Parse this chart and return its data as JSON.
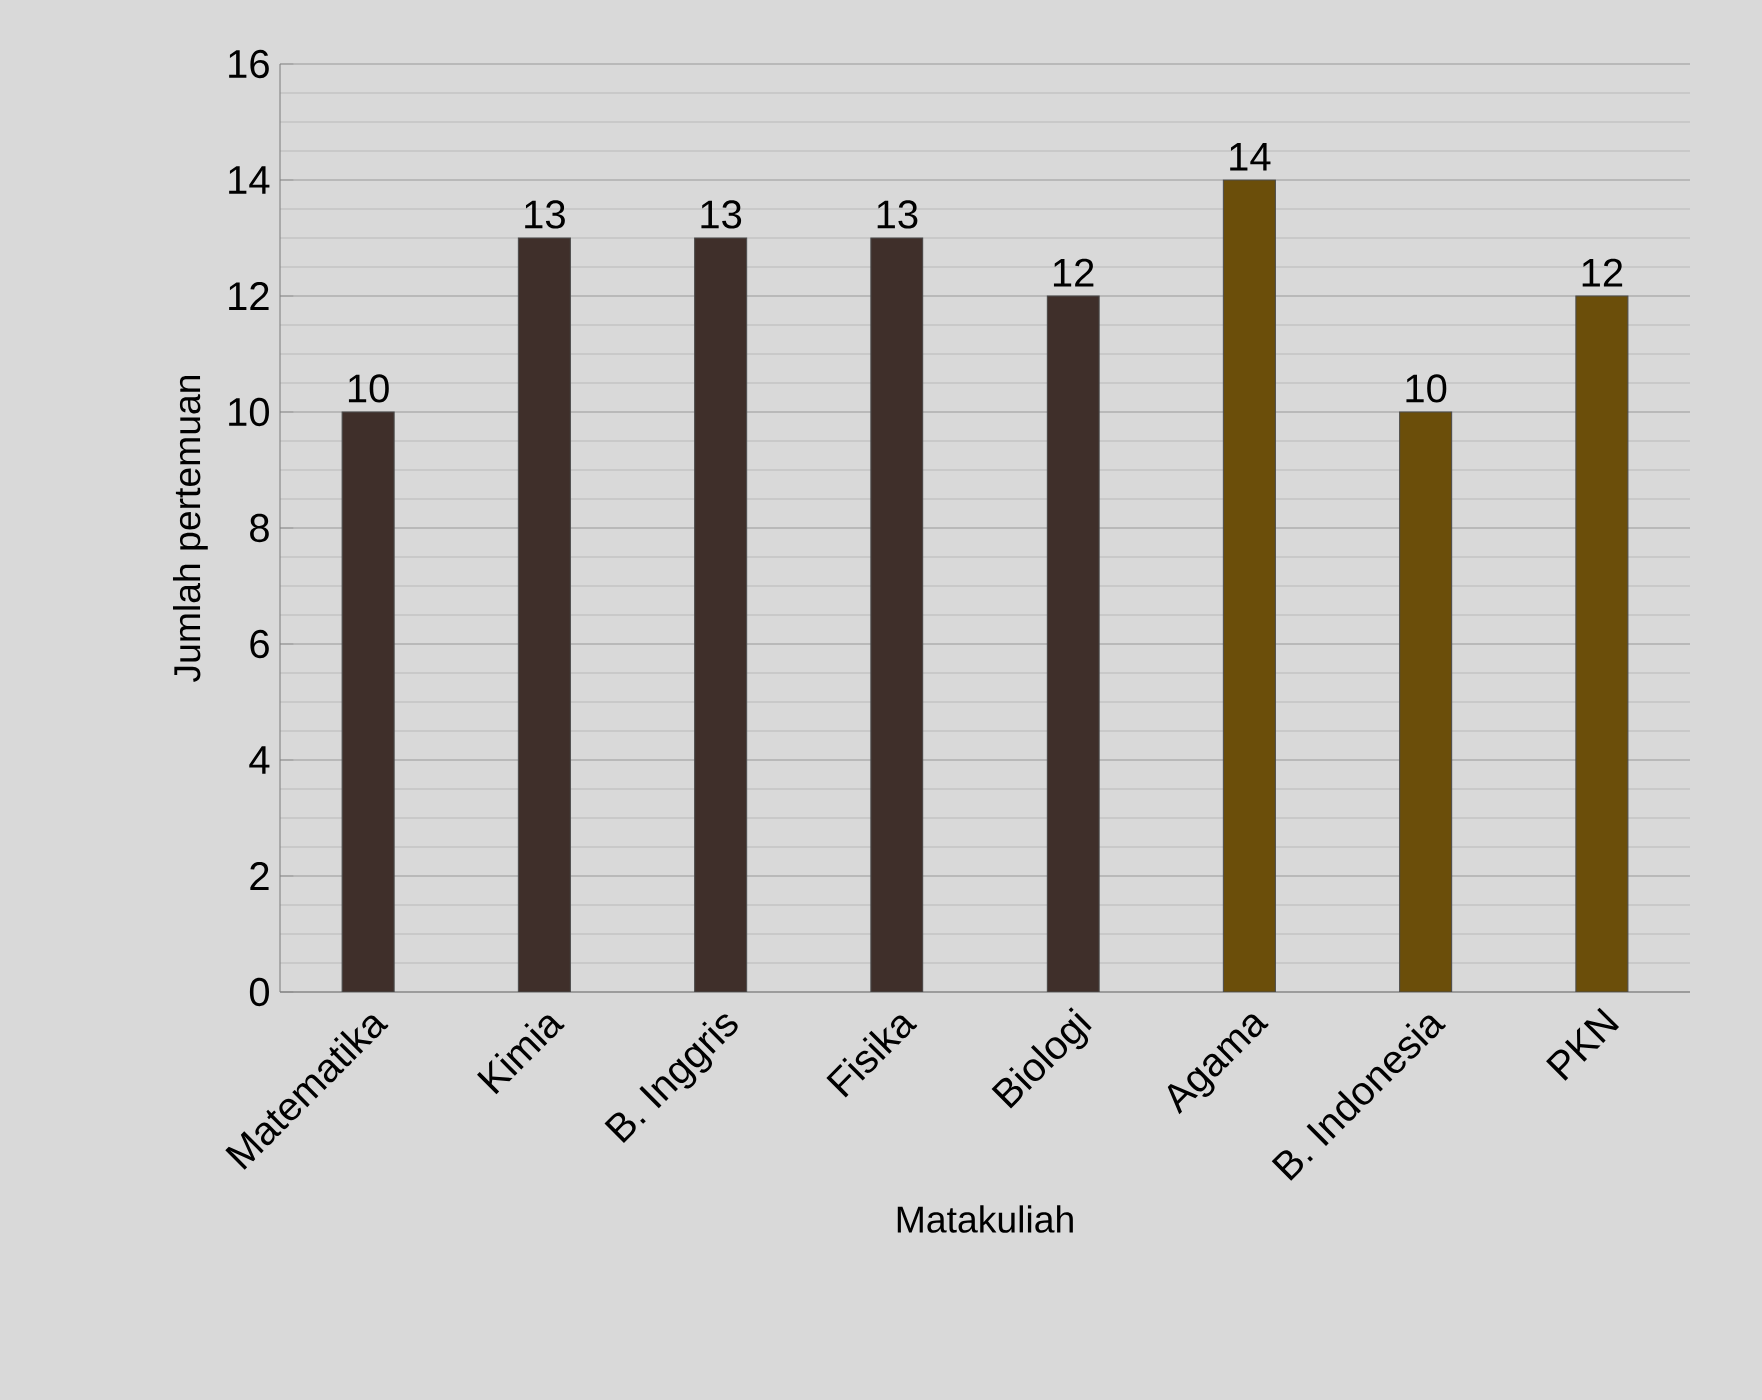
{
  "chart_data": {
    "type": "bar",
    "xlabel": "Matakuliah",
    "ylabel": "Jumlah pertemuan",
    "categories": [
      "Matematika",
      "Kimia",
      "B. Inggris",
      "Fisika",
      "Biologi",
      "Agama",
      "B. Indonesia",
      "PKN"
    ],
    "values": [
      10,
      13,
      13,
      13,
      12,
      14,
      10,
      12
    ],
    "colors": [
      "#3f2f2a",
      "#3f2f2a",
      "#3f2f2a",
      "#3f2f2a",
      "#3f2f2a",
      "#6b4e0a",
      "#6b4e0a",
      "#6b4e0a"
    ],
    "ylim": [
      0,
      16
    ],
    "yticks": [
      0,
      2,
      4,
      6,
      8,
      10,
      12,
      14,
      16
    ],
    "grid": "y",
    "data_labels": true
  }
}
